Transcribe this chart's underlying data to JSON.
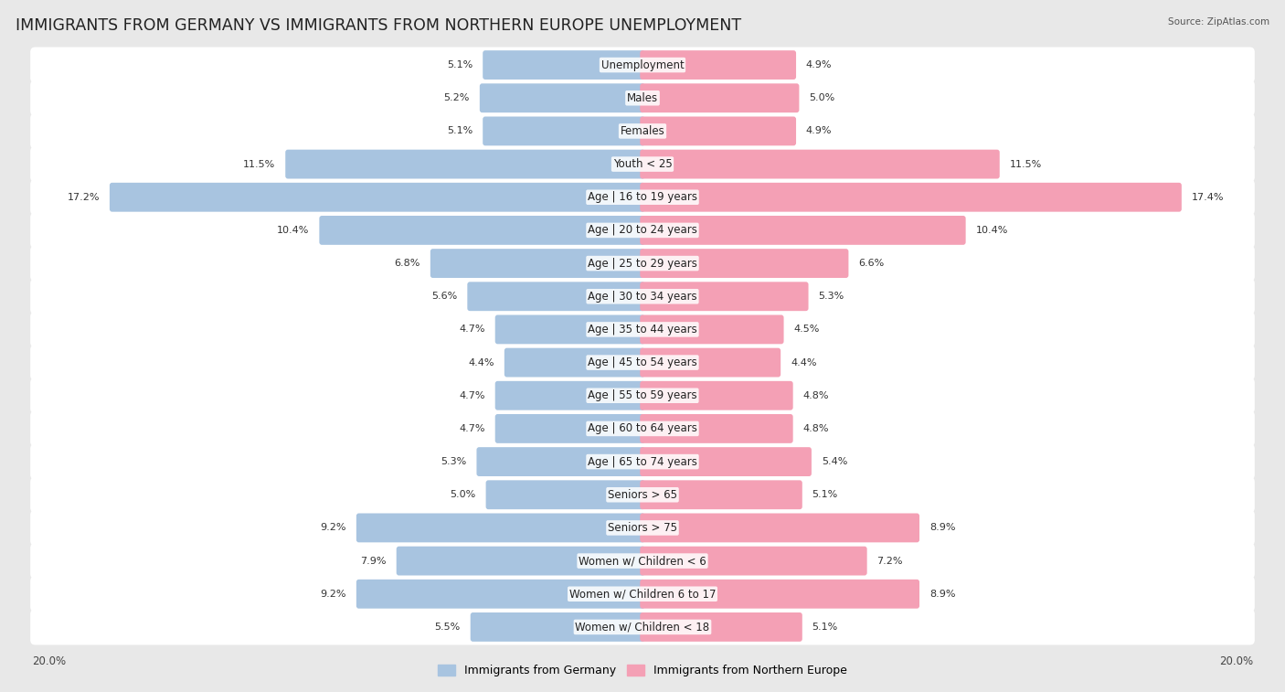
{
  "title": "IMMIGRANTS FROM GERMANY VS IMMIGRANTS FROM NORTHERN EUROPE UNEMPLOYMENT",
  "source": "Source: ZipAtlas.com",
  "categories": [
    "Unemployment",
    "Males",
    "Females",
    "Youth < 25",
    "Age | 16 to 19 years",
    "Age | 20 to 24 years",
    "Age | 25 to 29 years",
    "Age | 30 to 34 years",
    "Age | 35 to 44 years",
    "Age | 45 to 54 years",
    "Age | 55 to 59 years",
    "Age | 60 to 64 years",
    "Age | 65 to 74 years",
    "Seniors > 65",
    "Seniors > 75",
    "Women w/ Children < 6",
    "Women w/ Children 6 to 17",
    "Women w/ Children < 18"
  ],
  "germany_values": [
    5.1,
    5.2,
    5.1,
    11.5,
    17.2,
    10.4,
    6.8,
    5.6,
    4.7,
    4.4,
    4.7,
    4.7,
    5.3,
    5.0,
    9.2,
    7.9,
    9.2,
    5.5
  ],
  "northern_europe_values": [
    4.9,
    5.0,
    4.9,
    11.5,
    17.4,
    10.4,
    6.6,
    5.3,
    4.5,
    4.4,
    4.8,
    4.8,
    5.4,
    5.1,
    8.9,
    7.2,
    8.9,
    5.1
  ],
  "germany_color": "#a8c4e0",
  "northern_europe_color": "#f4a0b5",
  "germany_label": "Immigrants from Germany",
  "northern_europe_label": "Immigrants from Northern Europe",
  "background_color": "#e8e8e8",
  "bar_background": "#ffffff",
  "axis_limit": 20.0,
  "title_fontsize": 12.5,
  "label_fontsize": 8.5,
  "value_fontsize": 8.0
}
